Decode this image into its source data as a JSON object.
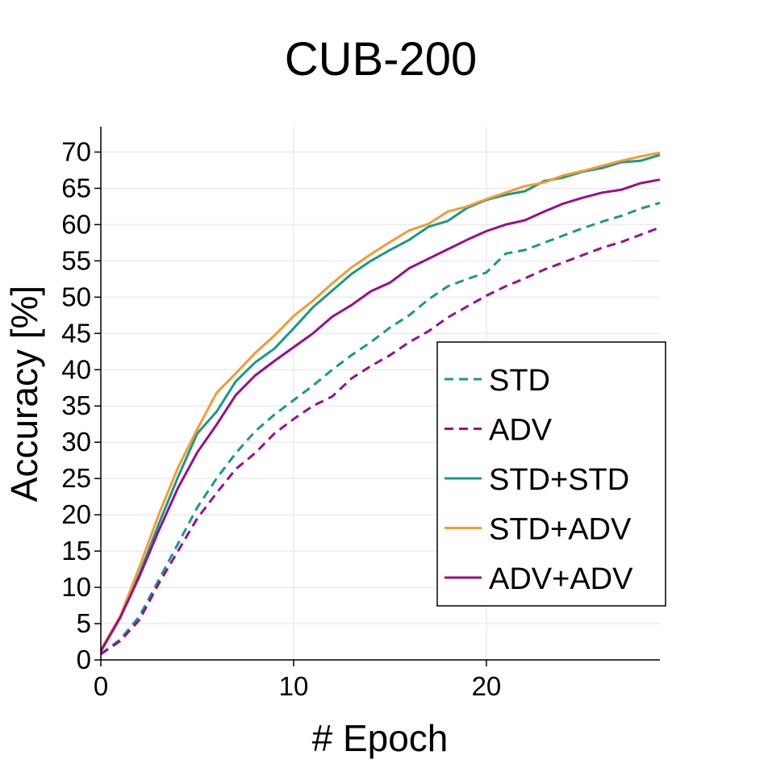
{
  "chart_data": {
    "type": "line",
    "title": "CUB-200",
    "xlabel": "# Epoch",
    "ylabel": "Accuracy [%]",
    "xlim": [
      0,
      29
    ],
    "ylim": [
      0,
      73.5
    ],
    "xticks": [
      0,
      10,
      20
    ],
    "yticks": [
      0,
      5,
      10,
      15,
      20,
      25,
      30,
      35,
      40,
      45,
      50,
      55,
      60,
      65,
      70
    ],
    "grid": true,
    "legend_position": "center-right",
    "x": [
      0,
      1,
      2,
      3,
      4,
      5,
      6,
      7,
      8,
      9,
      10,
      11,
      12,
      13,
      14,
      15,
      16,
      17,
      18,
      19,
      20,
      21,
      22,
      23,
      24,
      25,
      26,
      27,
      28,
      29
    ],
    "series": [
      {
        "name": "STD",
        "color": "#1a9988",
        "dash": "dashed",
        "values": [
          0.8,
          2.8,
          6.0,
          11.0,
          16.0,
          21.0,
          25.0,
          28.5,
          31.5,
          33.8,
          35.8,
          37.8,
          40.0,
          42.0,
          43.8,
          45.8,
          47.5,
          49.7,
          51.5,
          52.5,
          53.4,
          56.0,
          56.5,
          57.5,
          58.5,
          59.5,
          60.4,
          61.2,
          62.2,
          63.0
        ]
      },
      {
        "name": "ADV",
        "color": "#990f8c",
        "dash": "dashed",
        "values": [
          0.8,
          2.6,
          5.5,
          10.5,
          15.0,
          19.5,
          23.0,
          26.3,
          28.5,
          31.2,
          33.2,
          35.0,
          36.3,
          38.8,
          40.5,
          42.0,
          43.8,
          45.3,
          47.2,
          48.7,
          50.2,
          51.5,
          52.6,
          53.8,
          54.8,
          55.8,
          56.8,
          57.6,
          58.6,
          59.6
        ]
      },
      {
        "name": "STD+STD",
        "color": "#1a9988",
        "dash": "solid",
        "values": [
          1.2,
          5.8,
          11.8,
          18.7,
          25.2,
          31.2,
          34.2,
          38.4,
          41.0,
          42.9,
          45.7,
          48.6,
          50.9,
          53.2,
          55.0,
          56.5,
          57.9,
          59.7,
          60.5,
          62.3,
          63.4,
          64.1,
          64.6,
          66.0,
          66.5,
          67.3,
          67.8,
          68.6,
          68.8,
          69.6
        ]
      },
      {
        "name": "STD+ADV",
        "color": "#f39b33",
        "dash": "solid",
        "values": [
          1.4,
          6.0,
          12.8,
          20.0,
          26.5,
          31.8,
          36.8,
          39.5,
          42.3,
          44.7,
          47.4,
          49.5,
          51.9,
          54.1,
          55.9,
          57.6,
          59.2,
          60.1,
          61.8,
          62.5,
          63.5,
          64.4,
          65.3,
          65.8,
          66.8,
          67.4,
          68.1,
          68.8,
          69.4,
          69.9
        ]
      },
      {
        "name": "ADV+ADV",
        "color": "#990f8c",
        "dash": "solid",
        "values": [
          1.2,
          5.8,
          11.5,
          17.8,
          23.7,
          28.6,
          32.4,
          36.5,
          39.2,
          41.2,
          43.1,
          45.0,
          47.3,
          48.9,
          50.8,
          52.0,
          54.0,
          55.3,
          56.6,
          57.9,
          59.1,
          60.0,
          60.6,
          61.8,
          62.9,
          63.7,
          64.4,
          64.8,
          65.7,
          66.2
        ]
      }
    ]
  }
}
